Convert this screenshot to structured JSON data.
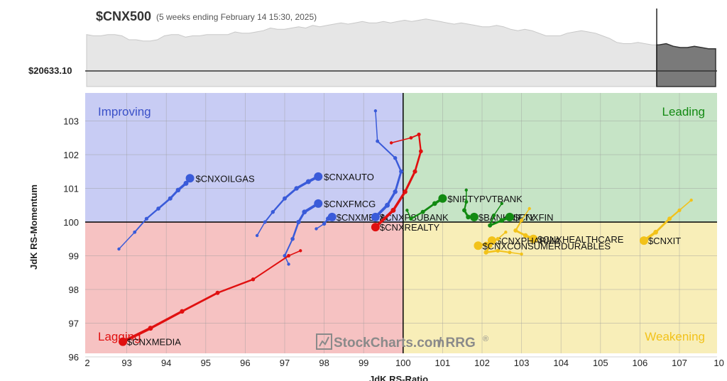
{
  "header": {
    "symbol": "$CNX500",
    "period": "(5 weeks ending February 14 15:30, 2025)",
    "price_label": "$20633.10"
  },
  "watermark": {
    "brand": "StockCharts.com",
    "suffix": " / RRG",
    "mark": "®"
  },
  "colors": {
    "improving_bg": "#c8ccf4",
    "leading_bg": "#c6e4c6",
    "lagging_bg": "#f6c2c2",
    "weakening_bg": "#f8eeb8",
    "blue": "#3a5bd9",
    "green": "#128a12",
    "red": "#e01010",
    "yellow": "#f2c21a",
    "quadrant_text_improving": "#3a50c8",
    "quadrant_text_leading": "#128a12",
    "quadrant_text_lagging": "#e01010",
    "quadrant_text_weakening": "#f2c21a"
  },
  "chart_data": {
    "type": "scatter",
    "subtype": "relative-rotation-graph",
    "xlabel": "JdK RS-Ratio",
    "ylabel": "JdK RS-Momentum",
    "xlim": [
      92,
      108
    ],
    "ylim": [
      96,
      104
    ],
    "xticks": [
      "2",
      "93",
      "94",
      "95",
      "96",
      "97",
      "98",
      "99",
      "100",
      "101",
      "102",
      "103",
      "104",
      "105",
      "106",
      "107",
      "10"
    ],
    "yticks": [
      "103",
      "102",
      "101",
      "100",
      "99",
      "98",
      "97",
      "96"
    ],
    "grid": true,
    "quadrants": [
      {
        "name": "Improving",
        "position": "top-left"
      },
      {
        "name": "Leading",
        "position": "top-right"
      },
      {
        "name": "Lagging",
        "position": "bottom-left"
      },
      {
        "name": "Weakening",
        "position": "bottom-right"
      }
    ],
    "series": [
      {
        "name": "$CNXOILGAS",
        "color": "blue",
        "points": [
          [
            92.8,
            99.2
          ],
          [
            93.2,
            99.7
          ],
          [
            93.5,
            100.1
          ],
          [
            93.8,
            100.4
          ],
          [
            94.1,
            100.7
          ],
          [
            94.3,
            100.95
          ],
          [
            94.5,
            101.15
          ],
          [
            94.6,
            101.3
          ]
        ]
      },
      {
        "name": "$CNXAUTO",
        "color": "blue",
        "points": [
          [
            96.3,
            99.6
          ],
          [
            96.5,
            100.0
          ],
          [
            96.7,
            100.3
          ],
          [
            97.0,
            100.7
          ],
          [
            97.3,
            101.0
          ],
          [
            97.6,
            101.2
          ],
          [
            97.85,
            101.35
          ]
        ]
      },
      {
        "name": "$CNXFMCG",
        "color": "blue",
        "points": [
          [
            97.1,
            98.75
          ],
          [
            97.0,
            99.0
          ],
          [
            97.2,
            99.5
          ],
          [
            97.35,
            100.0
          ],
          [
            97.5,
            100.3
          ],
          [
            97.85,
            100.55
          ]
        ]
      },
      {
        "name": "$CNXMETAL",
        "color": "blue",
        "points": [
          [
            97.8,
            99.8
          ],
          [
            98.0,
            99.95
          ],
          [
            98.1,
            100.1
          ],
          [
            98.2,
            100.15
          ]
        ]
      },
      {
        "name": "$CNXPSUBANK",
        "color": "blue",
        "points": [
          [
            99.3,
            103.3
          ],
          [
            99.35,
            102.4
          ],
          [
            99.8,
            101.9
          ],
          [
            99.95,
            101.5
          ],
          [
            99.8,
            100.9
          ],
          [
            99.6,
            100.5
          ],
          [
            99.3,
            100.15
          ]
        ]
      },
      {
        "name": "$NIFTYPVTBANK",
        "color": "green",
        "points": [
          [
            100.1,
            100.35
          ],
          [
            100.2,
            100.1
          ],
          [
            100.5,
            100.3
          ],
          [
            100.8,
            100.55
          ],
          [
            101.0,
            100.7
          ]
        ]
      },
      {
        "name": "$BANKNIFTY",
        "color": "green",
        "points": [
          [
            101.6,
            100.95
          ],
          [
            101.6,
            100.6
          ],
          [
            101.55,
            100.35
          ],
          [
            101.65,
            100.15
          ],
          [
            101.8,
            100.15
          ]
        ]
      },
      {
        "name": "$CNXFIN",
        "color": "green",
        "points": [
          [
            102.5,
            100.55
          ],
          [
            102.3,
            100.2
          ],
          [
            102.2,
            99.9
          ],
          [
            102.5,
            100.05
          ],
          [
            102.7,
            100.15
          ]
        ]
      },
      {
        "name": "$CNXREALTY",
        "color": "red",
        "points": [
          [
            99.7,
            102.35
          ],
          [
            100.2,
            102.5
          ],
          [
            100.4,
            102.6
          ],
          [
            100.45,
            102.1
          ],
          [
            100.3,
            101.5
          ],
          [
            100.05,
            100.9
          ],
          [
            99.75,
            100.35
          ],
          [
            99.3,
            99.85
          ]
        ]
      },
      {
        "name": "$CNXMEDIA",
        "color": "red",
        "points": [
          [
            97.4,
            99.15
          ],
          [
            97.1,
            99.0
          ],
          [
            96.2,
            98.3
          ],
          [
            95.3,
            97.9
          ],
          [
            94.4,
            97.35
          ],
          [
            93.6,
            96.85
          ],
          [
            92.9,
            96.45
          ]
        ]
      },
      {
        "name": "$CNXIT",
        "color": "yellow",
        "points": [
          [
            107.3,
            100.65
          ],
          [
            107.0,
            100.35
          ],
          [
            106.75,
            100.1
          ],
          [
            106.4,
            99.7
          ],
          [
            106.1,
            99.45
          ]
        ]
      },
      {
        "name": "$CNXHEALTHCARE",
        "color": "yellow",
        "points": [
          [
            103.2,
            100.4
          ],
          [
            103.0,
            100.05
          ],
          [
            102.85,
            99.75
          ],
          [
            103.1,
            99.6
          ],
          [
            103.3,
            99.5
          ]
        ]
      },
      {
        "name": "$CNXPHARMA",
        "color": "yellow",
        "points": [
          [
            103.0,
            99.05
          ],
          [
            102.7,
            99.1
          ],
          [
            102.4,
            99.15
          ],
          [
            102.1,
            99.1
          ],
          [
            102.2,
            99.3
          ],
          [
            102.25,
            99.45
          ]
        ]
      },
      {
        "name": "$CNXCONSUMERDURABLES",
        "color": "yellow",
        "points": [
          [
            102.6,
            99.7
          ],
          [
            102.4,
            99.5
          ],
          [
            102.1,
            99.35
          ],
          [
            101.9,
            99.3
          ]
        ]
      }
    ],
    "benchmark_price": {
      "values": [
        40,
        39,
        39,
        40,
        40,
        39,
        36,
        36,
        35,
        35,
        36,
        39,
        40,
        40,
        38,
        39,
        39,
        40,
        40,
        40,
        40,
        42,
        41,
        41,
        42,
        43,
        45,
        44,
        44,
        45,
        46,
        45,
        47,
        46,
        47,
        48,
        49,
        48,
        49,
        50,
        49,
        49,
        50,
        49,
        50,
        51,
        50,
        51,
        52,
        51,
        50,
        49,
        48,
        49,
        48,
        47,
        46,
        46,
        47,
        46,
        44,
        43,
        44,
        43,
        41,
        39,
        39,
        39,
        41,
        42,
        43,
        42,
        41,
        39,
        37,
        34,
        33,
        33,
        34,
        33,
        32,
        32,
        33,
        31,
        30,
        30,
        31,
        30,
        29,
        29
      ]
    }
  }
}
